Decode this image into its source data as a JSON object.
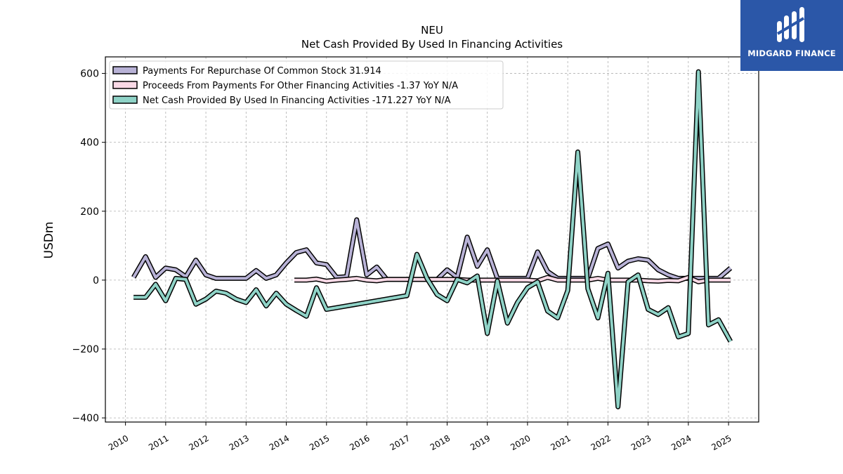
{
  "brand": {
    "name": "MIDGARD FINANCE",
    "bg_color": "#2b57a8"
  },
  "chart_data": {
    "type": "line",
    "title": "NEU",
    "subtitle": "Net Cash Provided By Used In Financing Activities",
    "xlabel": "",
    "ylabel": "USDm",
    "xlim": [
      2009.5,
      2025.75
    ],
    "ylim": [
      -412,
      648
    ],
    "xticks": [
      "2010",
      "2011",
      "2012",
      "2013",
      "2014",
      "2015",
      "2016",
      "2017",
      "2018",
      "2019",
      "2020",
      "2021",
      "2022",
      "2023",
      "2024",
      "2025"
    ],
    "yticks": [
      600,
      400,
      200,
      0,
      -200,
      -400
    ],
    "ytick_labels": [
      "600",
      "400",
      "200",
      "0",
      "−200",
      "−400"
    ],
    "grid": true,
    "legend_position": "top-left",
    "series": [
      {
        "name": "Payments For Repurchase Of Common Stock",
        "legend_label": "Payments For Repurchase Of Common Stock  31.914",
        "color": "#b8b2d6",
        "x": [
          2010.2,
          2010.5,
          2010.75,
          2011.0,
          2011.25,
          2011.5,
          2011.75,
          2012.0,
          2012.25,
          2012.5,
          2012.75,
          2013.0,
          2013.25,
          2013.5,
          2013.75,
          2014.0,
          2014.25,
          2014.5,
          2014.75,
          2015.0,
          2015.25,
          2015.5,
          2015.75,
          2016.0,
          2016.25,
          2016.5,
          2016.75,
          2017.0,
          2017.25,
          2017.5,
          2017.75,
          2018.0,
          2018.25,
          2018.5,
          2018.75,
          2019.0,
          2019.25,
          2019.5,
          2019.75,
          2020.0,
          2020.25,
          2020.5,
          2020.75,
          2021.0,
          2021.25,
          2021.5,
          2021.75,
          2022.0,
          2022.25,
          2022.5,
          2022.75,
          2023.0,
          2023.25,
          2023.5,
          2023.75,
          2024.0,
          2024.25,
          2024.5,
          2024.75,
          2025.05
        ],
        "y": [
          8,
          68,
          8,
          35,
          30,
          10,
          58,
          15,
          5,
          5,
          5,
          5,
          28,
          5,
          15,
          50,
          80,
          88,
          50,
          45,
          8,
          10,
          175,
          15,
          38,
          2,
          2,
          2,
          2,
          2,
          2,
          30,
          8,
          125,
          40,
          88,
          5,
          5,
          5,
          5,
          82,
          25,
          5,
          5,
          5,
          5,
          92,
          105,
          35,
          55,
          62,
          58,
          30,
          15,
          5,
          5,
          5,
          5,
          5,
          35
        ]
      },
      {
        "name": "Proceeds From Payments For Other Financing Activities",
        "legend_label": "Proceeds From Payments For Other Financing Activities  -1.37 YoY N/A",
        "color": "#f9d9e6",
        "x": [
          2014.2,
          2014.5,
          2014.75,
          2015.0,
          2015.25,
          2015.5,
          2015.75,
          2016.0,
          2016.25,
          2016.5,
          2016.75,
          2017.0,
          2017.25,
          2017.5,
          2017.75,
          2018.0,
          2018.25,
          2018.5,
          2018.75,
          2019.0,
          2019.25,
          2019.5,
          2019.75,
          2020.0,
          2020.25,
          2020.5,
          2020.75,
          2021.0,
          2021.25,
          2021.5,
          2021.75,
          2022.0,
          2022.25,
          2022.5,
          2022.75,
          2023.0,
          2023.25,
          2023.5,
          2023.75,
          2024.0,
          2024.25,
          2024.5,
          2024.75,
          2025.05
        ],
        "y": [
          0,
          0,
          3,
          -3,
          0,
          2,
          5,
          0,
          -2,
          2,
          2,
          2,
          2,
          2,
          2,
          2,
          2,
          0,
          0,
          0,
          0,
          0,
          0,
          0,
          -2,
          8,
          0,
          0,
          0,
          0,
          5,
          0,
          0,
          0,
          0,
          -2,
          -3,
          -1,
          -2,
          8,
          -5,
          0,
          0,
          0
        ]
      },
      {
        "name": "Net Cash Provided By Used In Financing Activities",
        "legend_label": "Net Cash Provided By Used In Financing Activities  -171.227 YoY N/A",
        "color": "#8fd3c7",
        "x": [
          2010.2,
          2010.5,
          2010.75,
          2011.0,
          2011.25,
          2011.5,
          2011.75,
          2012.0,
          2012.25,
          2012.5,
          2012.75,
          2013.0,
          2013.25,
          2013.5,
          2013.75,
          2014.0,
          2014.25,
          2014.5,
          2014.75,
          2015.0,
          2017.0,
          2017.25,
          2017.5,
          2017.75,
          2018.0,
          2018.25,
          2018.5,
          2018.75,
          2019.0,
          2019.25,
          2019.5,
          2019.75,
          2020.0,
          2020.25,
          2020.5,
          2020.75,
          2021.0,
          2021.25,
          2021.5,
          2021.75,
          2022.0,
          2022.25,
          2022.5,
          2022.75,
          2023.0,
          2023.25,
          2023.5,
          2023.75,
          2024.0,
          2024.25,
          2024.5,
          2024.75,
          2025.05
        ],
        "y": [
          -50,
          -50,
          -12,
          -60,
          5,
          2,
          -70,
          -55,
          -32,
          -38,
          -55,
          -65,
          -28,
          -75,
          -38,
          -70,
          -88,
          -105,
          -22,
          -85,
          -45,
          75,
          5,
          -42,
          -60,
          2,
          -8,
          12,
          -155,
          -2,
          -125,
          -65,
          -22,
          -5,
          -90,
          -110,
          -30,
          372,
          -25,
          -110,
          20,
          -368,
          -5,
          15,
          -85,
          -100,
          -80,
          -165,
          -155,
          605,
          -130,
          -115,
          -178
        ]
      }
    ]
  }
}
